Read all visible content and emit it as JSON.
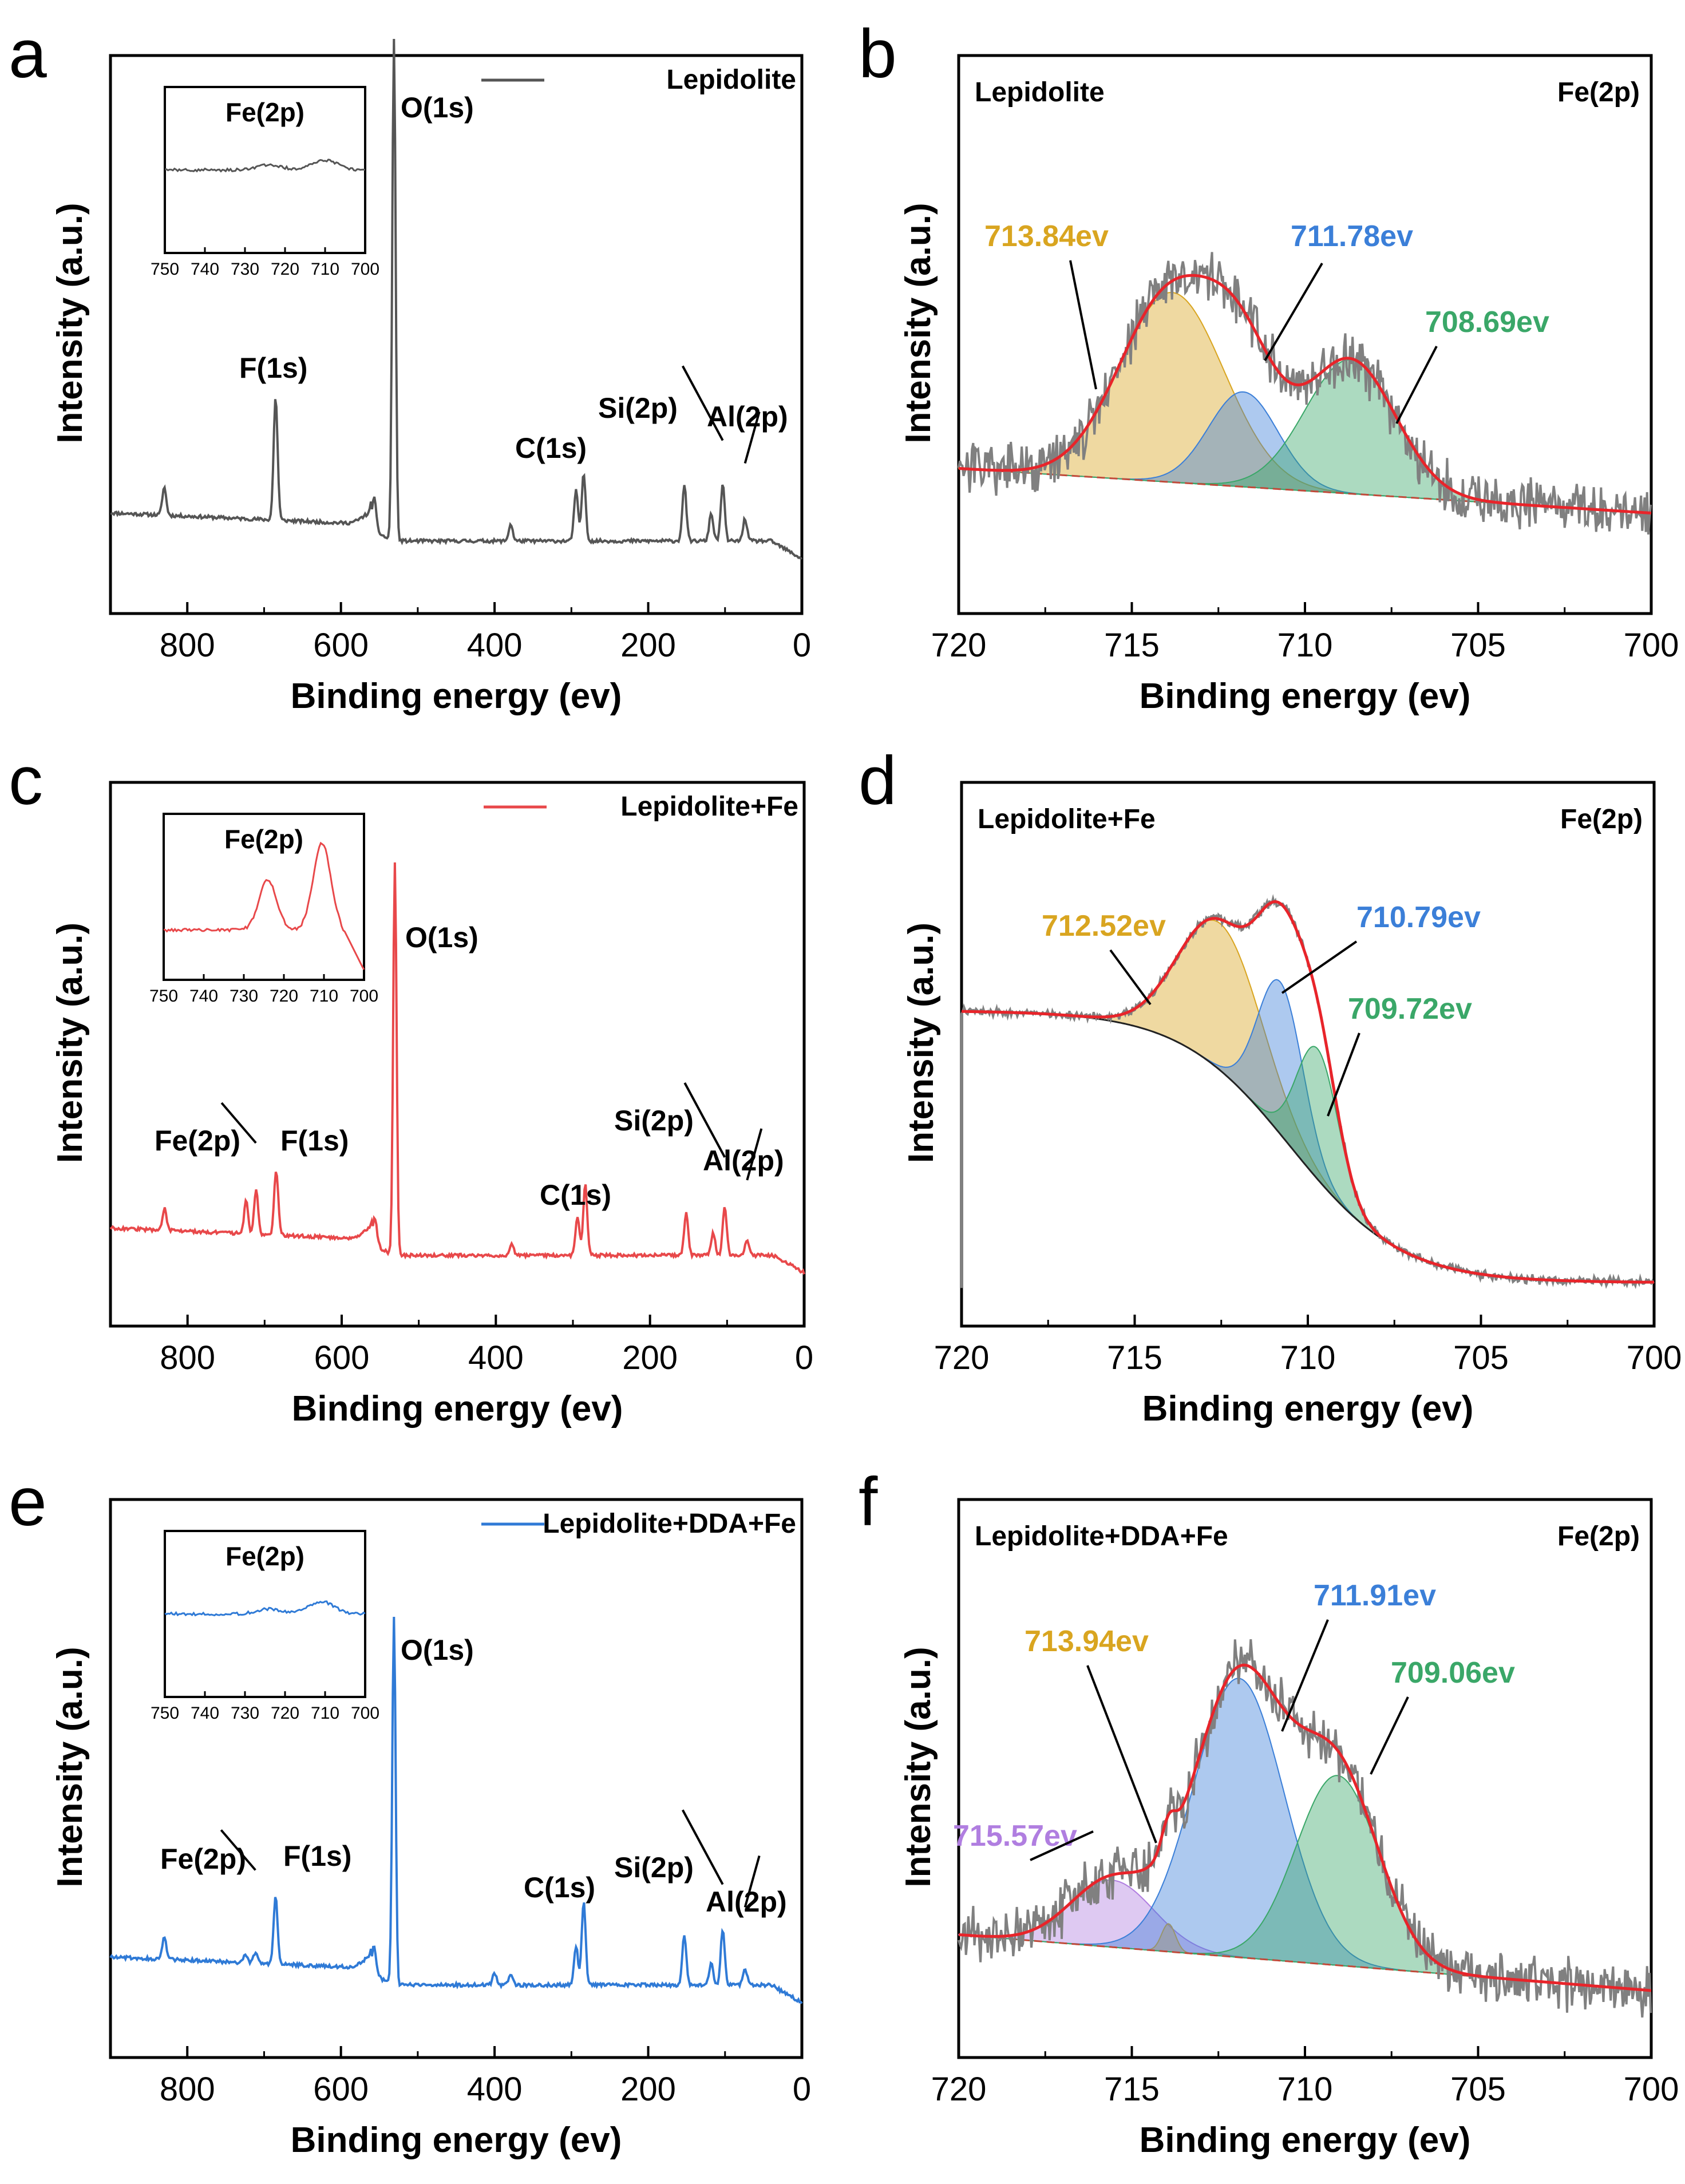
{
  "figure": {
    "colors": {
      "lepidolite": "#555555",
      "fe": "#e8484a",
      "dda": "#2f7ad6",
      "raw": "#808080",
      "fit": "#e8242a",
      "yellow": "#d9a520",
      "blue": "#3b7fd8",
      "green": "#3aa768",
      "purple": "#b07ee0",
      "baseline": "#c04a3a"
    }
  },
  "chart_data": [
    {
      "id": "a",
      "panel_letter": "a",
      "type": "line",
      "title": "",
      "xlabel": "Binding energy (ev)",
      "ylabel": "Intensity (a.u.)",
      "xlim": [
        900,
        0
      ],
      "x_ticks": [
        800,
        600,
        400,
        200,
        0
      ],
      "legend": "Lepidolite",
      "legend_position": "top-right",
      "series": [
        {
          "name": "Lepidolite",
          "color_key": "lepidolite",
          "baseline": 0.13,
          "peaks": [
            {
              "x": 830,
              "h": 0.05
            },
            {
              "x": 685,
              "h": 0.22
            },
            {
              "x": 557,
              "h": 0.06
            },
            {
              "x": 531,
              "h": 0.9
            },
            {
              "x": 379,
              "h": 0.03
            },
            {
              "x": 294,
              "h": 0.09
            },
            {
              "x": 284,
              "h": 0.12
            },
            {
              "x": 153,
              "h": 0.1
            },
            {
              "x": 118,
              "h": 0.05
            },
            {
              "x": 103,
              "h": 0.1
            },
            {
              "x": 74,
              "h": 0.04
            }
          ]
        }
      ],
      "annotations": [
        {
          "text": "O(1s)",
          "x": 531
        },
        {
          "text": "F(1s)",
          "x": 685
        },
        {
          "text": "C(1s)",
          "x": 285
        },
        {
          "text": "Si(2p)",
          "x": 103
        },
        {
          "text": "Al(2p)",
          "x": 74
        }
      ],
      "inset": {
        "title": "Fe(2p)",
        "x_ticks": [
          750,
          740,
          730,
          720,
          710,
          700
        ],
        "xlim": [
          750,
          700
        ],
        "peaks": [
          {
            "x": 710,
            "h": 0.2
          },
          {
            "x": 724,
            "h": 0.1
          }
        ]
      }
    },
    {
      "id": "b",
      "panel_letter": "b",
      "type": "line",
      "title": "",
      "xlabel": "Binding energy (ev)",
      "ylabel": "Intensity (a.u.)",
      "xlim": [
        720,
        700
      ],
      "x_ticks": [
        720,
        715,
        710,
        705,
        700
      ],
      "sample_label": "Lepidolite",
      "element_label": "Fe(2p)",
      "baseline": {
        "left": 0.26,
        "right": 0.18
      },
      "components": [
        {
          "center": 713.84,
          "height": 0.34,
          "width": 1.5,
          "color_key": "yellow",
          "label": "713.84ev"
        },
        {
          "center": 711.78,
          "height": 0.17,
          "width": 1.0,
          "color_key": "blue",
          "label": "711.78ev"
        },
        {
          "center": 708.69,
          "height": 0.24,
          "width": 1.3,
          "color_key": "green",
          "label": "708.69ev"
        }
      ]
    },
    {
      "id": "c",
      "panel_letter": "c",
      "type": "line",
      "title": "",
      "xlabel": "Binding energy (ev)",
      "ylabel": "Intensity (a.u.)",
      "xlim": [
        900,
        0
      ],
      "x_ticks": [
        800,
        600,
        400,
        200,
        0
      ],
      "legend": "Lepidolite+Fe",
      "legend_position": "top-right",
      "series": [
        {
          "name": "Lepidolite+Fe",
          "color_key": "fe",
          "baseline": 0.13,
          "peaks": [
            {
              "x": 830,
              "h": 0.04
            },
            {
              "x": 724,
              "h": 0.06
            },
            {
              "x": 711,
              "h": 0.08
            },
            {
              "x": 685,
              "h": 0.12
            },
            {
              "x": 557,
              "h": 0.05
            },
            {
              "x": 531,
              "h": 0.72
            },
            {
              "x": 379,
              "h": 0.02
            },
            {
              "x": 294,
              "h": 0.07
            },
            {
              "x": 284,
              "h": 0.13
            },
            {
              "x": 153,
              "h": 0.08
            },
            {
              "x": 118,
              "h": 0.04
            },
            {
              "x": 103,
              "h": 0.09
            },
            {
              "x": 74,
              "h": 0.03
            }
          ]
        }
      ],
      "annotations": [
        {
          "text": "O(1s)",
          "x": 531
        },
        {
          "text": "Fe(2p)",
          "x": 715
        },
        {
          "text": "F(1s)",
          "x": 685
        },
        {
          "text": "C(1s)",
          "x": 285
        },
        {
          "text": "Si(2p)",
          "x": 103
        },
        {
          "text": "Al(2p)",
          "x": 74
        }
      ],
      "inset": {
        "title": "Fe(2p)",
        "x_ticks": [
          750,
          740,
          730,
          720,
          710,
          700
        ],
        "xlim": [
          750,
          700
        ],
        "peaks": [
          {
            "x": 710.5,
            "h": 0.95
          },
          {
            "x": 724,
            "h": 0.55
          }
        ]
      }
    },
    {
      "id": "d",
      "panel_letter": "d",
      "type": "line",
      "title": "",
      "xlabel": "Binding energy (ev)",
      "ylabel": "Intensity (a.u.)",
      "xlim": [
        720,
        700
      ],
      "x_ticks": [
        720,
        715,
        710,
        705,
        700
      ],
      "sample_label": "Lepidolite+Fe",
      "element_label": "Fe(2p)",
      "baseline_type": "shirley",
      "baseline": {
        "left": 0.58,
        "right": 0.08,
        "center": 710.5,
        "width": 1.6
      },
      "components": [
        {
          "center": 712.52,
          "height": 0.27,
          "width": 1.2,
          "color_key": "yellow",
          "label": "712.52ev"
        },
        {
          "center": 710.79,
          "height": 0.28,
          "width": 0.65,
          "color_key": "blue",
          "label": "710.79ev"
        },
        {
          "center": 709.72,
          "height": 0.24,
          "width": 0.6,
          "color_key": "green",
          "label": "709.72ev"
        }
      ]
    },
    {
      "id": "e",
      "panel_letter": "e",
      "type": "line",
      "title": "",
      "xlabel": "Binding energy (ev)",
      "ylabel": "Intensity (a.u.)",
      "xlim": [
        900,
        0
      ],
      "x_ticks": [
        800,
        600,
        400,
        200,
        0
      ],
      "legend": "Lepidolite+DDA+Fe",
      "legend_position": "top-right",
      "series": [
        {
          "name": "Lepidolite+DDA+Fe",
          "color_key": "dda",
          "baseline": 0.13,
          "peaks": [
            {
              "x": 830,
              "h": 0.04
            },
            {
              "x": 724,
              "h": 0.015
            },
            {
              "x": 711,
              "h": 0.02
            },
            {
              "x": 685,
              "h": 0.12
            },
            {
              "x": 557,
              "h": 0.05
            },
            {
              "x": 531,
              "h": 0.66
            },
            {
              "x": 400,
              "h": 0.02
            },
            {
              "x": 379,
              "h": 0.02
            },
            {
              "x": 294,
              "h": 0.07
            },
            {
              "x": 284,
              "h": 0.15
            },
            {
              "x": 153,
              "h": 0.09
            },
            {
              "x": 118,
              "h": 0.04
            },
            {
              "x": 103,
              "h": 0.1
            },
            {
              "x": 74,
              "h": 0.03
            }
          ]
        }
      ],
      "annotations": [
        {
          "text": "O(1s)",
          "x": 531
        },
        {
          "text": "Fe(2p)",
          "x": 715
        },
        {
          "text": "F(1s)",
          "x": 685
        },
        {
          "text": "C(1s)",
          "x": 285
        },
        {
          "text": "Si(2p)",
          "x": 103
        },
        {
          "text": "Al(2p)",
          "x": 74
        }
      ],
      "inset": {
        "title": "Fe(2p)",
        "x_ticks": [
          750,
          740,
          730,
          720,
          710,
          700
        ],
        "xlim": [
          750,
          700
        ],
        "peaks": [
          {
            "x": 711,
            "h": 0.25
          },
          {
            "x": 724,
            "h": 0.1
          }
        ]
      }
    },
    {
      "id": "f",
      "panel_letter": "f",
      "type": "line",
      "title": "",
      "xlabel": "Binding energy (ev)",
      "ylabel": "Intensity (a.u.)",
      "xlim": [
        720,
        700
      ],
      "x_ticks": [
        720,
        715,
        710,
        705,
        700
      ],
      "sample_label": "Lepidolite+DDA+Fe",
      "element_label": "Fe(2p)",
      "baseline": {
        "left": 0.22,
        "right": 0.12
      },
      "components": [
        {
          "center": 715.57,
          "height": 0.12,
          "width": 1.2,
          "color_key": "purple",
          "label": "715.57ev"
        },
        {
          "center": 713.94,
          "height": 0.05,
          "width": 0.2,
          "color_key": "yellow",
          "label": "713.94ev"
        },
        {
          "center": 711.91,
          "height": 0.5,
          "width": 1.3,
          "color_key": "blue",
          "label": "711.91ev"
        },
        {
          "center": 709.06,
          "height": 0.34,
          "width": 1.2,
          "color_key": "green",
          "label": "709.06ev"
        }
      ]
    }
  ]
}
